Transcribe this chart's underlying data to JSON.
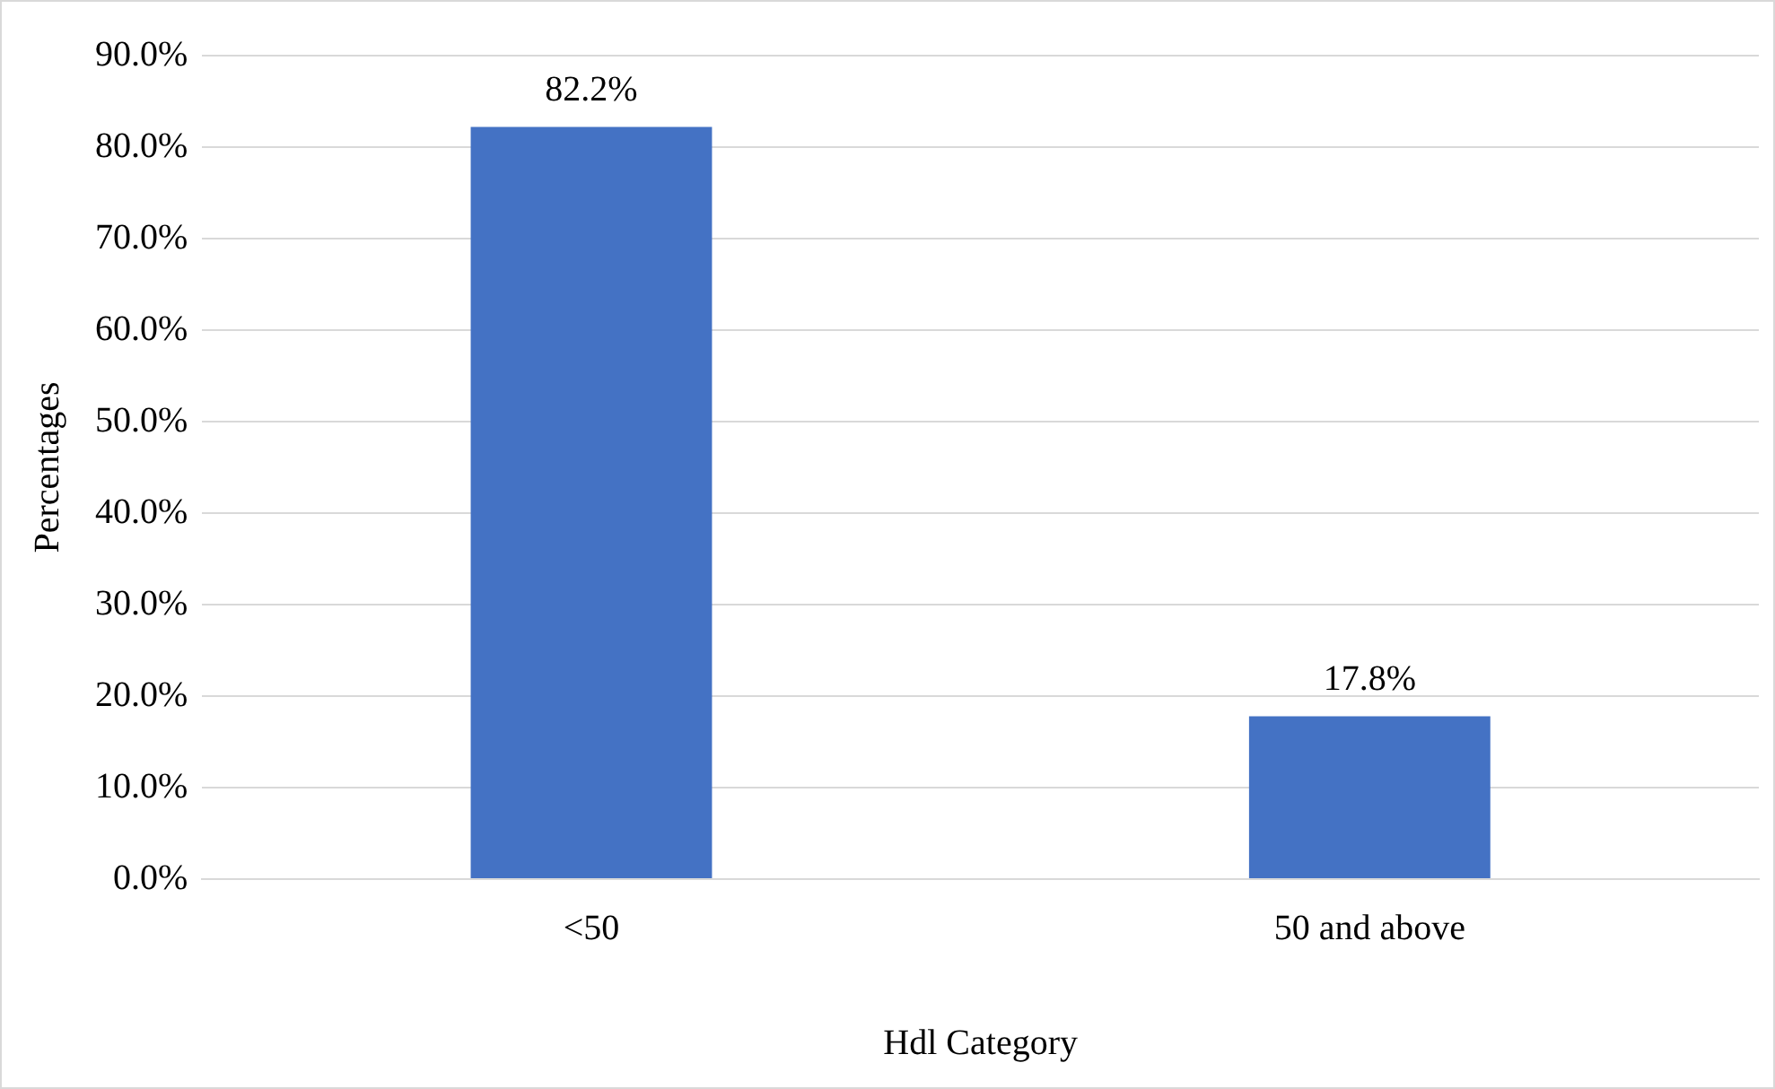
{
  "chart_data": {
    "type": "bar",
    "xlabel": "Hdl Category",
    "ylabel": "Percentages",
    "categories": [
      "<50",
      "50 and above"
    ],
    "values": [
      82.2,
      17.8
    ],
    "color": "#4472c4",
    "value_labels": [
      "82.2%",
      "17.8%"
    ],
    "ylim": [
      0,
      90
    ],
    "yticks": [
      {
        "value": 0,
        "label": "0.0%"
      },
      {
        "value": 10,
        "label": "10.0%"
      },
      {
        "value": 20,
        "label": "20.0%"
      },
      {
        "value": 30,
        "label": "30.0%"
      },
      {
        "value": 40,
        "label": "40.0%"
      },
      {
        "value": 50,
        "label": "50.0%"
      },
      {
        "value": 60,
        "label": "60.0%"
      },
      {
        "value": 70,
        "label": "70.0%"
      },
      {
        "value": 80,
        "label": "80.0%"
      },
      {
        "value": 90,
        "label": "90.0%"
      }
    ],
    "grid": "y",
    "legend": false
  }
}
